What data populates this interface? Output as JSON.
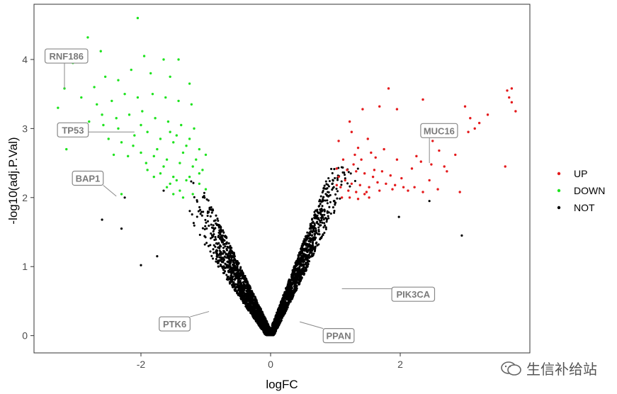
{
  "chart_data": {
    "type": "scatter",
    "title": "",
    "xlabel": "logFC",
    "ylabel": "-log10(adj.P.Val)",
    "xlim": [
      -3.65,
      4.0
    ],
    "ylim": [
      -0.25,
      4.8
    ],
    "x_ticks": [
      -2,
      0,
      2
    ],
    "x_tick_labels": [
      "-2",
      "0",
      "2"
    ],
    "y_ticks": [
      0,
      1,
      2,
      3,
      4
    ],
    "y_tick_labels": [
      "0",
      "1",
      "2",
      "3",
      "4"
    ],
    "grid": false,
    "legend": {
      "position": "right",
      "entries": [
        "UP",
        "DOWN",
        "NOT"
      ]
    },
    "series": [
      {
        "name": "UP",
        "color": "#e41a1c",
        "points": [
          [
            1.82,
            3.58
          ],
          [
            1.42,
            3.28
          ],
          [
            1.22,
            3.1
          ],
          [
            1.68,
            3.32
          ],
          [
            1.95,
            3.28
          ],
          [
            2.35,
            3.42
          ],
          [
            1.25,
            2.95
          ],
          [
            1.05,
            2.82
          ],
          [
            1.35,
            2.72
          ],
          [
            1.55,
            2.65
          ],
          [
            1.75,
            2.7
          ],
          [
            1.62,
            2.58
          ],
          [
            1.12,
            2.55
          ],
          [
            1.28,
            2.48
          ],
          [
            1.02,
            2.42
          ],
          [
            1.18,
            2.4
          ],
          [
            1.32,
            2.38
          ],
          [
            1.45,
            2.35
          ],
          [
            1.58,
            2.3
          ],
          [
            1.72,
            2.38
          ],
          [
            1.85,
            2.32
          ],
          [
            2.02,
            2.28
          ],
          [
            2.18,
            2.42
          ],
          [
            2.32,
            2.52
          ],
          [
            2.48,
            2.48
          ],
          [
            2.6,
            2.68
          ],
          [
            2.72,
            2.38
          ],
          [
            2.5,
            2.82
          ],
          [
            1.05,
            2.3
          ],
          [
            1.15,
            2.25
          ],
          [
            1.25,
            2.2
          ],
          [
            1.38,
            2.18
          ],
          [
            1.52,
            2.15
          ],
          [
            1.65,
            2.22
          ],
          [
            1.78,
            2.2
          ],
          [
            1.92,
            2.18
          ],
          [
            2.05,
            2.15
          ],
          [
            2.22,
            2.15
          ],
          [
            2.45,
            2.25
          ],
          [
            2.58,
            2.12
          ],
          [
            1.08,
            2.15
          ],
          [
            1.2,
            2.1
          ],
          [
            1.32,
            2.08
          ],
          [
            1.45,
            2.05
          ],
          [
            1.22,
            2.0
          ],
          [
            1.35,
            1.98
          ],
          [
            1.52,
            2.0
          ],
          [
            1.68,
            2.1
          ],
          [
            1.88,
            2.12
          ],
          [
            2.12,
            2.1
          ],
          [
            2.35,
            2.08
          ],
          [
            1.48,
            2.08
          ],
          [
            1.1,
            2.0
          ],
          [
            1.02,
            2.18
          ],
          [
            1.6,
            2.4
          ],
          [
            1.4,
            2.55
          ],
          [
            1.95,
            2.55
          ],
          [
            2.25,
            2.6
          ],
          [
            2.85,
            2.62
          ],
          [
            3.05,
            2.95
          ],
          [
            3.08,
            3.15
          ],
          [
            3.22,
            3.08
          ],
          [
            3.35,
            3.2
          ],
          [
            3.72,
            3.58
          ],
          [
            3.65,
            3.55
          ],
          [
            3.68,
            3.45
          ],
          [
            3.72,
            3.38
          ],
          [
            3.78,
            3.25
          ],
          [
            3.62,
            2.45
          ],
          [
            3.0,
            3.32
          ],
          [
            2.92,
            2.08
          ],
          [
            3.15,
            3.0
          ],
          [
            1.3,
            2.62
          ],
          [
            2.8,
            2.95
          ],
          [
            1.5,
            2.85
          ],
          [
            2.68,
            2.45
          ]
        ]
      },
      {
        "name": "DOWN",
        "color": "#1fe31f",
        "points": [
          [
            -2.05,
            4.6
          ],
          [
            -2.82,
            4.32
          ],
          [
            -2.62,
            4.12
          ],
          [
            -1.95,
            4.05
          ],
          [
            -1.65,
            4.0
          ],
          [
            -1.42,
            4.0
          ],
          [
            -3.05,
            3.95
          ],
          [
            -3.18,
            3.58
          ],
          [
            -3.28,
            3.3
          ],
          [
            -3.15,
            2.7
          ],
          [
            -2.92,
            3.45
          ],
          [
            -2.72,
            3.6
          ],
          [
            -2.55,
            3.75
          ],
          [
            -2.35,
            3.7
          ],
          [
            -2.15,
            3.85
          ],
          [
            -1.85,
            3.8
          ],
          [
            -1.55,
            3.75
          ],
          [
            -1.25,
            3.65
          ],
          [
            -2.68,
            3.35
          ],
          [
            -2.45,
            3.4
          ],
          [
            -2.25,
            3.5
          ],
          [
            -2.05,
            3.45
          ],
          [
            -1.82,
            3.5
          ],
          [
            -1.62,
            3.45
          ],
          [
            -1.42,
            3.4
          ],
          [
            -1.22,
            3.35
          ],
          [
            -2.8,
            3.1
          ],
          [
            -2.58,
            3.05
          ],
          [
            -2.38,
            3.15
          ],
          [
            -2.18,
            3.2
          ],
          [
            -1.98,
            3.25
          ],
          [
            -1.78,
            3.15
          ],
          [
            -1.58,
            3.1
          ],
          [
            -1.38,
            3.05
          ],
          [
            -1.18,
            3.0
          ],
          [
            -2.5,
            2.85
          ],
          [
            -2.3,
            2.8
          ],
          [
            -2.1,
            2.9
          ],
          [
            -1.9,
            2.95
          ],
          [
            -1.7,
            2.85
          ],
          [
            -1.5,
            2.8
          ],
          [
            -1.3,
            2.75
          ],
          [
            -1.1,
            2.7
          ],
          [
            -2.2,
            2.6
          ],
          [
            -2.0,
            2.65
          ],
          [
            -1.8,
            2.6
          ],
          [
            -1.6,
            2.55
          ],
          [
            -1.4,
            2.5
          ],
          [
            -1.2,
            2.45
          ],
          [
            -1.0,
            2.62
          ],
          [
            -1.9,
            2.4
          ],
          [
            -1.7,
            2.35
          ],
          [
            -1.5,
            2.3
          ],
          [
            -1.3,
            2.25
          ],
          [
            -1.1,
            2.2
          ],
          [
            -1.6,
            2.15
          ],
          [
            -1.4,
            2.1
          ],
          [
            -1.2,
            2.05
          ],
          [
            -1.0,
            2.12
          ],
          [
            -1.5,
            2.05
          ],
          [
            -1.35,
            2.0
          ],
          [
            -1.45,
            2.25
          ],
          [
            -1.25,
            2.3
          ],
          [
            -1.15,
            2.55
          ],
          [
            -1.05,
            2.4
          ],
          [
            -2.35,
            3.0
          ],
          [
            -2.6,
            3.2
          ],
          [
            -2.0,
            3.05
          ],
          [
            -1.75,
            2.7
          ],
          [
            -1.55,
            2.95
          ],
          [
            -1.35,
            2.65
          ],
          [
            -2.12,
            2.75
          ],
          [
            -1.92,
            2.5
          ],
          [
            -1.65,
            2.45
          ],
          [
            -1.25,
            2.85
          ],
          [
            -1.45,
            2.9
          ],
          [
            -2.42,
            2.62
          ],
          [
            -1.8,
            2.3
          ],
          [
            -1.55,
            2.2
          ],
          [
            -1.1,
            2.35
          ],
          [
            -2.3,
            2.05
          ]
        ]
      },
      {
        "name": "NOT",
        "color": "#000000",
        "generated": true,
        "count": 3000,
        "extra_points": [
          [
            -2.6,
            1.68
          ],
          [
            -2.0,
            1.02
          ],
          [
            -1.75,
            1.15
          ],
          [
            -2.25,
            2.0
          ],
          [
            -1.65,
            2.1
          ],
          [
            2.95,
            1.45
          ],
          [
            2.45,
            1.95
          ],
          [
            1.98,
            1.72
          ],
          [
            -2.3,
            1.55
          ]
        ]
      }
    ],
    "annotations": [
      {
        "label": "RNF186",
        "point": [
          -3.18,
          3.58
        ],
        "box": [
          -3.15,
          4.05
        ]
      },
      {
        "label": "TP53",
        "point": [
          -2.1,
          2.95
        ],
        "box": [
          -3.05,
          2.98
        ]
      },
      {
        "label": "BAP1",
        "point": [
          -2.38,
          2.02
        ],
        "box": [
          -2.82,
          2.28
        ]
      },
      {
        "label": "MUC16",
        "point": [
          2.45,
          2.5
        ],
        "box": [
          2.6,
          2.97
        ]
      },
      {
        "label": "PIK3CA",
        "point": [
          1.1,
          0.68
        ],
        "box": [
          2.2,
          0.6
        ]
      },
      {
        "label": "PTK6",
        "point": [
          -0.95,
          0.35
        ],
        "box": [
          -1.48,
          0.17
        ]
      },
      {
        "label": "PPAN",
        "point": [
          0.45,
          0.2
        ],
        "box": [
          1.05,
          0.0
        ]
      }
    ]
  },
  "watermark": {
    "text": "生信补给站"
  }
}
